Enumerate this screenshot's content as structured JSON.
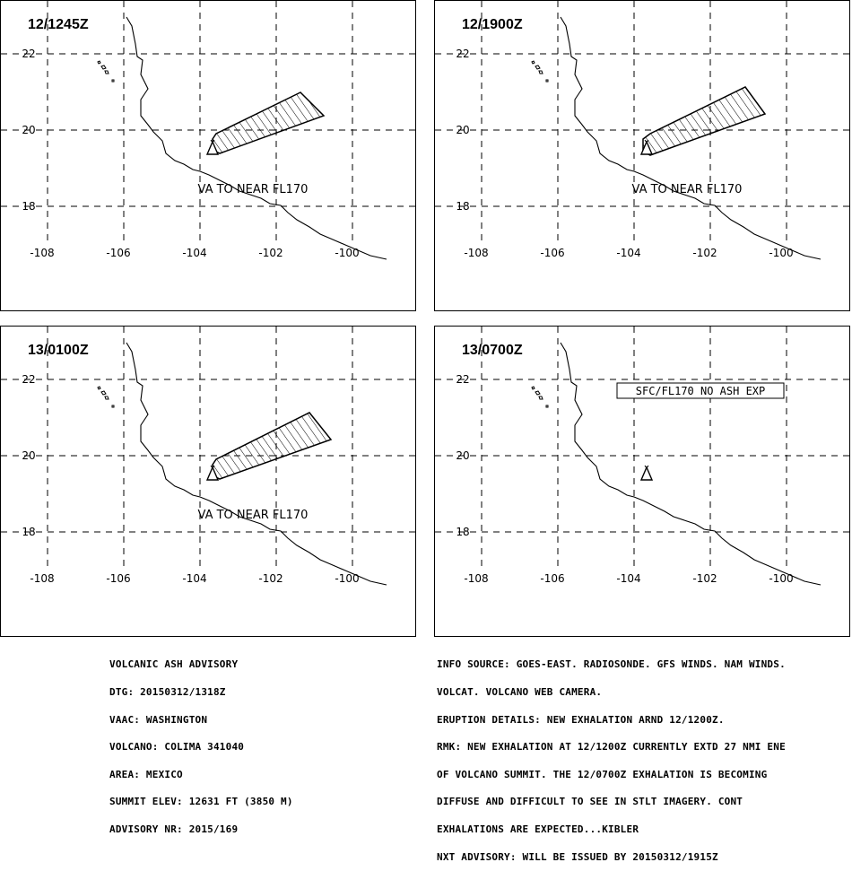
{
  "panels": [
    {
      "time": "12/1245Z",
      "label": "VA TO NEAR FL170",
      "ash": true
    },
    {
      "time": "12/1900Z",
      "label": "VA TO NEAR FL170",
      "ash": true
    },
    {
      "time": "13/0100Z",
      "label": "VA TO NEAR FL170",
      "ash": true
    },
    {
      "time": "13/0700Z",
      "label": "SFC/FL170 NO ASH EXP",
      "ash": false
    }
  ],
  "axes": {
    "lon_ticks": [
      "-108",
      "-106",
      "-104",
      "-102",
      "-100"
    ],
    "lat_ticks": [
      "22",
      "20",
      "18"
    ]
  },
  "advisory_left": [
    "VOLCANIC ASH ADVISORY",
    "DTG: 20150312/1318Z",
    "VAAC: WASHINGTON",
    "VOLCANO: COLIMA 341040",
    "AREA: MEXICO",
    "SUMMIT ELEV: 12631 FT (3850 M)",
    "ADVISORY NR: 2015/169"
  ],
  "advisory_right": [
    "INFO SOURCE: GOES-EAST. RADIOSONDE. GFS WINDS. NAM WINDS.",
    "VOLCAT. VOLCANO WEB CAMERA.",
    "ERUPTION DETAILS: NEW EXHALATION ARND 12/1200Z.",
    "RMK: NEW EXHALATION AT 12/1200Z CURRENTLY EXTD 27 NMI ENE",
    "OF VOLCANO SUMMIT. THE 12/0700Z EXHALATION IS BECOMING",
    "DIFFUSE AND DIFFICULT TO SEE IN STLT IMAGERY. CONT",
    "EXHALATIONS ARE EXPECTED...KIBLER",
    "NXT ADVISORY: WILL BE ISSUED BY 20150312/1915Z"
  ]
}
